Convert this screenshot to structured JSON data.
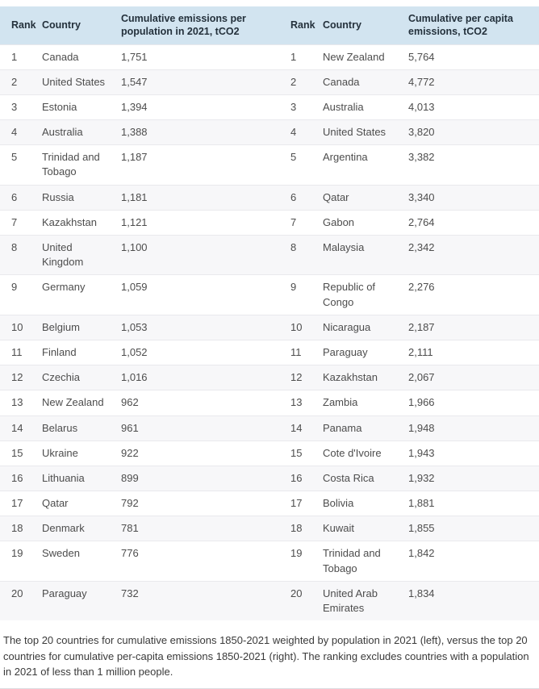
{
  "colors": {
    "header_bg": "#d2e4f0",
    "header_text": "#24313c",
    "cell_text": "#4d4d4d",
    "row_alt_bg": "#f7f7f9",
    "row_border": "#e9e9ed",
    "caption_text": "#3a3a3a"
  },
  "chart_data": [
    {
      "type": "table",
      "title": "Top 20 countries, cumulative emissions weighted by population (left table)",
      "columns": [
        "Rank",
        "Country",
        "Cumulative emissions per population in 2021, tCO2"
      ],
      "rows": [
        [
          1,
          "Canada",
          1751
        ],
        [
          2,
          "United States",
          1547
        ],
        [
          3,
          "Estonia",
          1394
        ],
        [
          4,
          "Australia",
          1388
        ],
        [
          5,
          "Trinidad and Tobago",
          1187
        ],
        [
          6,
          "Russia",
          1181
        ],
        [
          7,
          "Kazakhstan",
          1121
        ],
        [
          8,
          "United Kingdom",
          1100
        ],
        [
          9,
          "Germany",
          1059
        ],
        [
          10,
          "Belgium",
          1053
        ],
        [
          11,
          "Finland",
          1052
        ],
        [
          12,
          "Czechia",
          1016
        ],
        [
          13,
          "New Zealand",
          962
        ],
        [
          14,
          "Belarus",
          961
        ],
        [
          15,
          "Ukraine",
          922
        ],
        [
          16,
          "Lithuania",
          899
        ],
        [
          17,
          "Qatar",
          792
        ],
        [
          18,
          "Denmark",
          781
        ],
        [
          19,
          "Sweden",
          776
        ],
        [
          20,
          "Paraguay",
          732
        ]
      ]
    },
    {
      "type": "table",
      "title": "Top 20 countries, cumulative per-capita emissions (right table)",
      "columns": [
        "Rank",
        "Country",
        "Cumulative per capita emissions, tCO2"
      ],
      "rows": [
        [
          1,
          "New Zealand",
          5764
        ],
        [
          2,
          "Canada",
          4772
        ],
        [
          3,
          "Australia",
          4013
        ],
        [
          4,
          "United States",
          3820
        ],
        [
          5,
          "Argentina",
          3382
        ],
        [
          6,
          "Qatar",
          3340
        ],
        [
          7,
          "Gabon",
          2764
        ],
        [
          8,
          "Malaysia",
          2342
        ],
        [
          9,
          "Republic of Congo",
          2276
        ],
        [
          10,
          "Nicaragua",
          2187
        ],
        [
          11,
          "Paraguay",
          2111
        ],
        [
          12,
          "Kazakhstan",
          2067
        ],
        [
          13,
          "Zambia",
          1966
        ],
        [
          14,
          "Panama",
          1948
        ],
        [
          15,
          "Cote d'Ivoire",
          1943
        ],
        [
          16,
          "Costa Rica",
          1932
        ],
        [
          17,
          "Bolivia",
          1881
        ],
        [
          18,
          "Kuwait",
          1855
        ],
        [
          19,
          "Trinidad and Tobago",
          1842
        ],
        [
          20,
          "United Arab Emirates",
          1834
        ]
      ]
    }
  ],
  "caption": "The top 20 countries for cumulative emissions 1850-2021 weighted by population in 2021 (left), versus the top 20 countries for cumulative per-capita emissions 1850-2021 (right). The ranking excludes countries with a population in 2021 of less than 1 million people."
}
